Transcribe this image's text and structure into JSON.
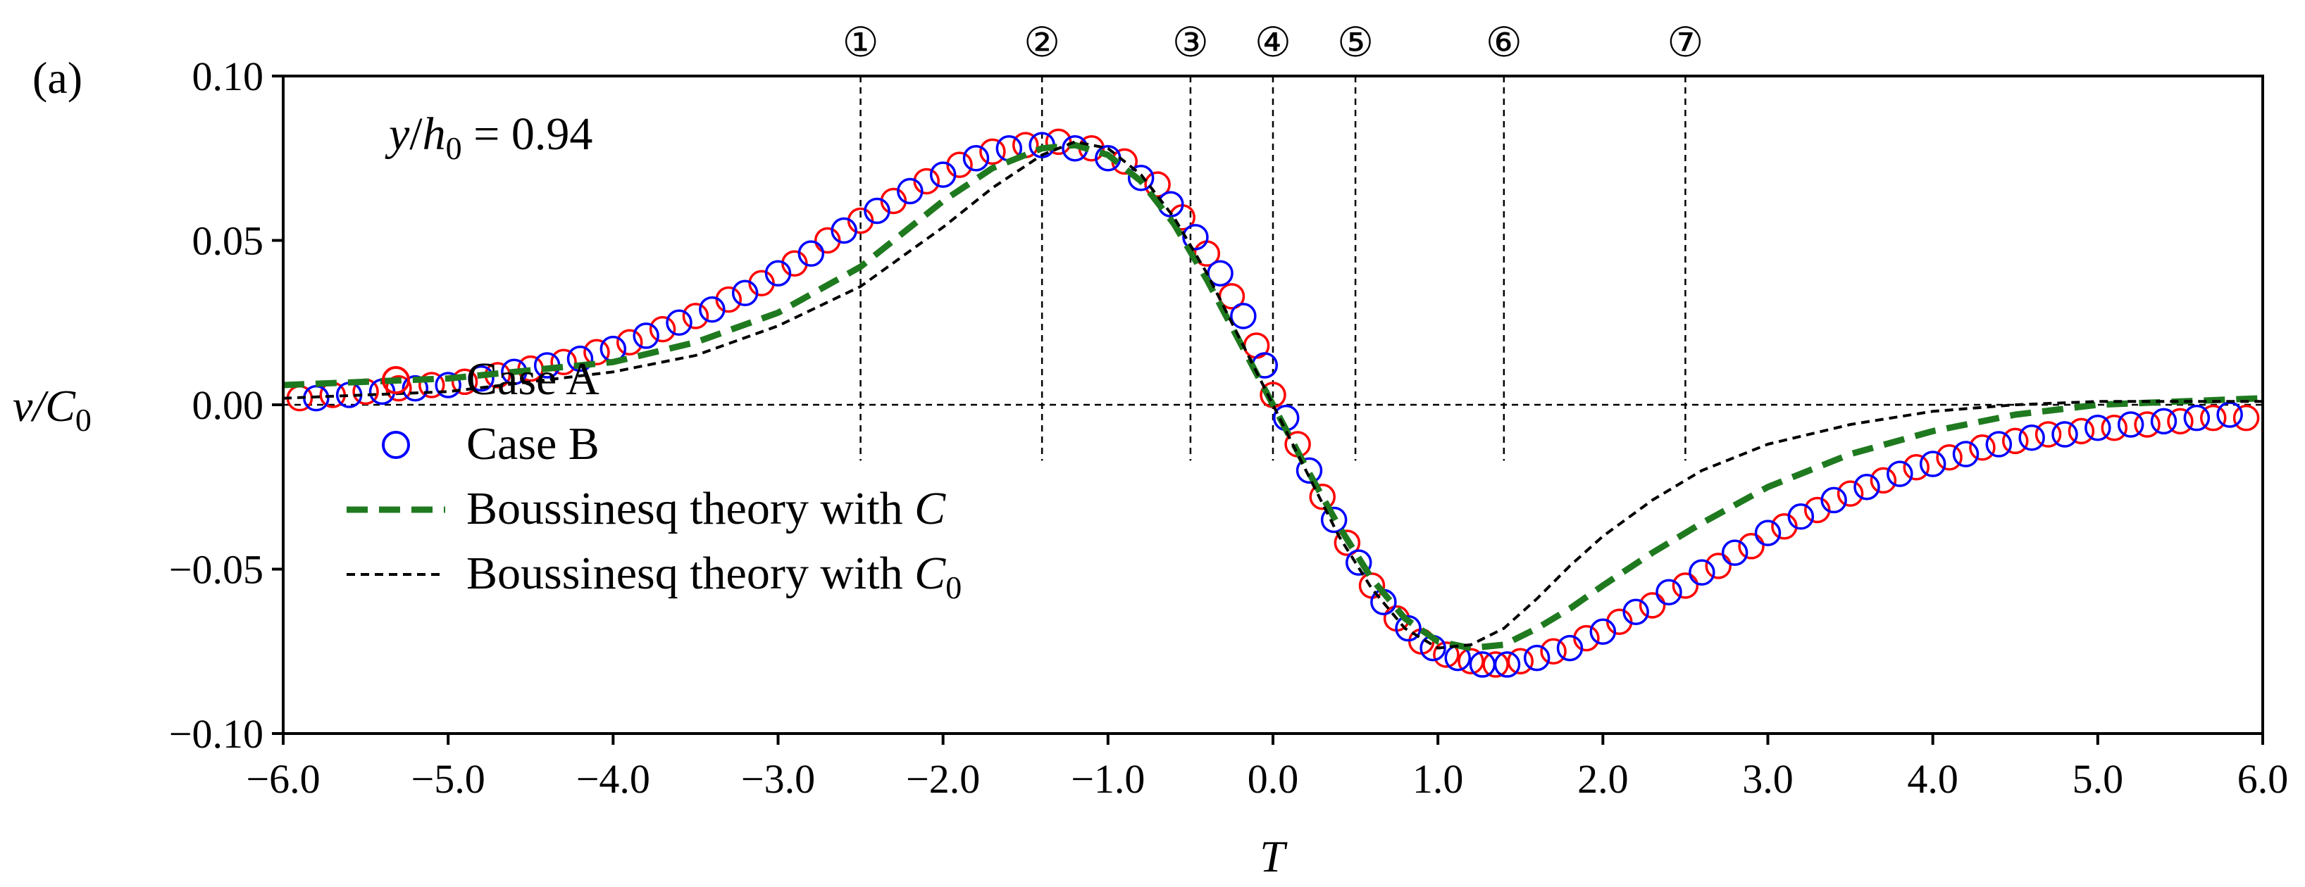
{
  "chart_data": {
    "type": "line",
    "panel_label": "(a)",
    "annotation": {
      "y_var": "y",
      "h_var": "h",
      "h_sub": "0",
      "text": " = 0.94"
    },
    "xlabel": "T",
    "ylabel": {
      "main": "v/C",
      "sub": "0"
    },
    "xlim": [
      -6.0,
      6.0
    ],
    "ylim": [
      -0.1,
      0.1
    ],
    "x_ticks": [
      -6,
      -5,
      -4,
      -3,
      -2,
      -1,
      0,
      1,
      2,
      3,
      4,
      5,
      6
    ],
    "x_tick_labels": [
      "−6.0",
      "−5.0",
      "−4.0",
      "−3.0",
      "−2.0",
      "−1.0",
      "0.0",
      "1.0",
      "2.0",
      "3.0",
      "4.0",
      "5.0",
      "6.0"
    ],
    "y_ticks": [
      0.1,
      0.05,
      0.0,
      -0.05,
      -0.1
    ],
    "y_tick_labels": [
      "0.10",
      "0.05",
      "0.00",
      "−0.05",
      "−0.10"
    ],
    "event_markers": [
      {
        "label": "①",
        "x": -2.5
      },
      {
        "label": "②",
        "x": -1.4
      },
      {
        "label": "③",
        "x": -0.5
      },
      {
        "label": "④",
        "x": 0.0
      },
      {
        "label": "⑤",
        "x": 0.5
      },
      {
        "label": "⑥",
        "x": 1.4
      },
      {
        "label": "⑦",
        "x": 2.5
      }
    ],
    "series": [
      {
        "name": "Case A",
        "kind": "markers",
        "color": "#ff0000",
        "x": [
          -5.9,
          -5.7,
          -5.5,
          -5.3,
          -5.1,
          -4.9,
          -4.7,
          -4.5,
          -4.3,
          -4.1,
          -3.9,
          -3.7,
          -3.5,
          -3.3,
          -3.1,
          -2.9,
          -2.7,
          -2.5,
          -2.3,
          -2.1,
          -1.9,
          -1.7,
          -1.5,
          -1.3,
          -1.1,
          -0.9,
          -0.7,
          -0.55,
          -0.4,
          -0.25,
          -0.1,
          0.0,
          0.15,
          0.3,
          0.45,
          0.6,
          0.75,
          0.9,
          1.05,
          1.2,
          1.35,
          1.5,
          1.7,
          1.9,
          2.1,
          2.3,
          2.5,
          2.7,
          2.9,
          3.1,
          3.3,
          3.5,
          3.7,
          3.9,
          4.1,
          4.3,
          4.5,
          4.7,
          4.9,
          5.1,
          5.3,
          5.5,
          5.7,
          5.9
        ],
        "y": [
          0.002,
          0.003,
          0.004,
          0.005,
          0.006,
          0.007,
          0.009,
          0.011,
          0.013,
          0.016,
          0.019,
          0.023,
          0.027,
          0.032,
          0.037,
          0.043,
          0.05,
          0.056,
          0.062,
          0.068,
          0.073,
          0.077,
          0.079,
          0.08,
          0.078,
          0.074,
          0.067,
          0.057,
          0.046,
          0.033,
          0.018,
          0.003,
          -0.012,
          -0.028,
          -0.042,
          -0.055,
          -0.065,
          -0.072,
          -0.076,
          -0.078,
          -0.079,
          -0.078,
          -0.075,
          -0.071,
          -0.066,
          -0.061,
          -0.055,
          -0.049,
          -0.043,
          -0.037,
          -0.032,
          -0.027,
          -0.023,
          -0.019,
          -0.016,
          -0.013,
          -0.011,
          -0.009,
          -0.008,
          -0.007,
          -0.006,
          -0.005,
          -0.004,
          -0.004
        ]
      },
      {
        "name": "Case B",
        "kind": "markers",
        "color": "#0000ff",
        "x": [
          -5.8,
          -5.6,
          -5.4,
          -5.2,
          -5.0,
          -4.8,
          -4.6,
          -4.4,
          -4.2,
          -4.0,
          -3.8,
          -3.6,
          -3.4,
          -3.2,
          -3.0,
          -2.8,
          -2.6,
          -2.4,
          -2.2,
          -2.0,
          -1.8,
          -1.6,
          -1.4,
          -1.2,
          -1.0,
          -0.8,
          -0.62,
          -0.47,
          -0.32,
          -0.18,
          -0.05,
          0.08,
          0.22,
          0.37,
          0.52,
          0.67,
          0.82,
          0.97,
          1.12,
          1.27,
          1.42,
          1.6,
          1.8,
          2.0,
          2.2,
          2.4,
          2.6,
          2.8,
          3.0,
          3.2,
          3.4,
          3.6,
          3.8,
          4.0,
          4.2,
          4.4,
          4.6,
          4.8,
          5.0,
          5.2,
          5.4,
          5.6,
          5.8
        ],
        "y": [
          0.002,
          0.003,
          0.004,
          0.005,
          0.006,
          0.008,
          0.01,
          0.012,
          0.014,
          0.017,
          0.021,
          0.025,
          0.029,
          0.034,
          0.04,
          0.046,
          0.053,
          0.059,
          0.065,
          0.07,
          0.075,
          0.078,
          0.079,
          0.078,
          0.075,
          0.069,
          0.061,
          0.051,
          0.04,
          0.027,
          0.012,
          -0.004,
          -0.02,
          -0.035,
          -0.048,
          -0.06,
          -0.068,
          -0.074,
          -0.077,
          -0.079,
          -0.079,
          -0.077,
          -0.074,
          -0.069,
          -0.063,
          -0.057,
          -0.051,
          -0.045,
          -0.039,
          -0.034,
          -0.029,
          -0.025,
          -0.021,
          -0.018,
          -0.015,
          -0.012,
          -0.01,
          -0.009,
          -0.007,
          -0.006,
          -0.005,
          -0.004,
          -0.003
        ]
      },
      {
        "name": "Boussinesq theory with ",
        "name_var": "C",
        "kind": "line",
        "style": "dashed-thick",
        "color": "#1f7a1f",
        "x": [
          -6.0,
          -5.0,
          -4.0,
          -3.5,
          -3.0,
          -2.5,
          -2.0,
          -1.7,
          -1.4,
          -1.2,
          -1.0,
          -0.8,
          -0.6,
          -0.4,
          -0.2,
          0.0,
          0.2,
          0.4,
          0.6,
          0.8,
          1.0,
          1.2,
          1.4,
          1.6,
          1.8,
          2.0,
          2.3,
          2.6,
          3.0,
          3.5,
          4.0,
          4.5,
          5.0,
          5.5,
          6.0
        ],
        "y": [
          0.006,
          0.008,
          0.013,
          0.019,
          0.028,
          0.042,
          0.062,
          0.072,
          0.078,
          0.079,
          0.076,
          0.068,
          0.055,
          0.038,
          0.019,
          0.0,
          -0.019,
          -0.037,
          -0.053,
          -0.065,
          -0.072,
          -0.074,
          -0.073,
          -0.068,
          -0.062,
          -0.055,
          -0.045,
          -0.036,
          -0.025,
          -0.015,
          -0.008,
          -0.003,
          0.0,
          0.001,
          0.002
        ]
      },
      {
        "name": "Boussinesq theory with ",
        "name_var": "C",
        "name_sub": "0",
        "kind": "line",
        "style": "dashed-thin",
        "color": "#000000",
        "x": [
          -6.0,
          -5.0,
          -4.0,
          -3.5,
          -3.0,
          -2.5,
          -2.0,
          -1.7,
          -1.4,
          -1.2,
          -1.0,
          -0.8,
          -0.6,
          -0.4,
          -0.2,
          0.0,
          0.2,
          0.4,
          0.6,
          0.8,
          1.0,
          1.2,
          1.4,
          1.6,
          1.8,
          2.0,
          2.3,
          2.6,
          3.0,
          3.5,
          4.0,
          4.5,
          5.0,
          5.5,
          6.0
        ],
        "y": [
          0.002,
          0.004,
          0.01,
          0.015,
          0.024,
          0.036,
          0.054,
          0.066,
          0.076,
          0.08,
          0.078,
          0.07,
          0.057,
          0.04,
          0.02,
          0.0,
          -0.02,
          -0.04,
          -0.056,
          -0.068,
          -0.074,
          -0.073,
          -0.068,
          -0.059,
          -0.049,
          -0.04,
          -0.029,
          -0.02,
          -0.012,
          -0.006,
          -0.002,
          0.0,
          0.001,
          0.001,
          0.001
        ]
      }
    ]
  }
}
